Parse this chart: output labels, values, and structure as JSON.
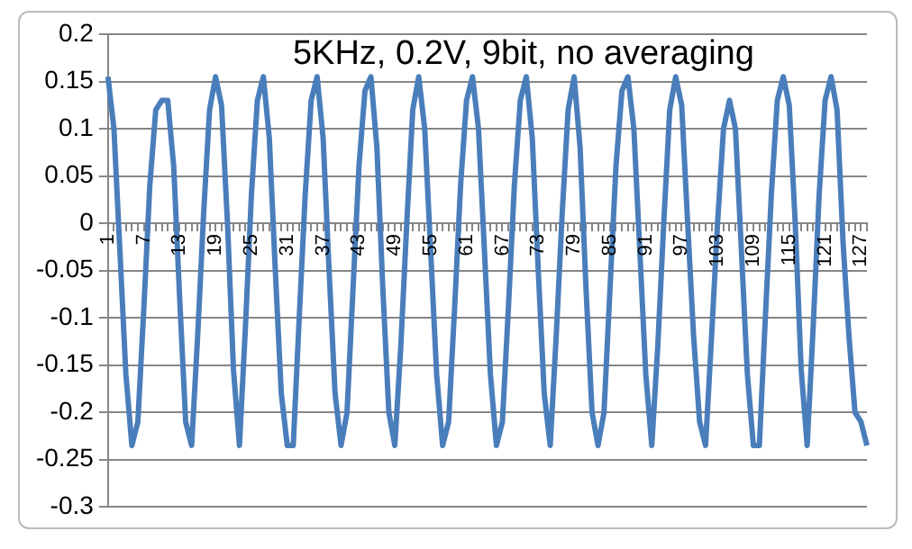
{
  "chart_data": {
    "type": "line",
    "title": "5KHz, 0.2V, 9bit, no averaging",
    "categories": [
      "1",
      null,
      null,
      null,
      null,
      null,
      "7",
      null,
      null,
      null,
      null,
      null,
      "13",
      null,
      null,
      null,
      null,
      null,
      "19",
      null,
      null,
      null,
      null,
      null,
      "25",
      null,
      null,
      null,
      null,
      null,
      "31",
      null,
      null,
      null,
      null,
      null,
      "37",
      null,
      null,
      null,
      null,
      null,
      "43",
      null,
      null,
      null,
      null,
      null,
      "49",
      null,
      null,
      null,
      null,
      null,
      "55",
      null,
      null,
      null,
      null,
      null,
      "61",
      null,
      null,
      null,
      null,
      null,
      "67",
      null,
      null,
      null,
      null,
      null,
      "73",
      null,
      null,
      null,
      null,
      null,
      "79",
      null,
      null,
      null,
      null,
      null,
      "85",
      null,
      null,
      null,
      null,
      null,
      "91",
      null,
      null,
      null,
      null,
      null,
      "97",
      null,
      null,
      null,
      null,
      null,
      "103",
      null,
      null,
      null,
      null,
      null,
      "109",
      null,
      null,
      null,
      null,
      null,
      "115",
      null,
      null,
      null,
      null,
      null,
      "121",
      null,
      null,
      null,
      null,
      null,
      "127",
      null
    ],
    "series": [
      {
        "color": "#4a7ebb",
        "values": [
          0.155,
          0.1,
          -0.03,
          -0.16,
          -0.235,
          -0.21,
          -0.09,
          0.04,
          0.12,
          0.13,
          0.13,
          0.06,
          -0.08,
          -0.21,
          -0.235,
          -0.12,
          0.01,
          0.12,
          0.155,
          0.125,
          0.0,
          -0.155,
          -0.235,
          -0.11,
          0.03,
          0.13,
          0.155,
          0.09,
          -0.05,
          -0.18,
          -0.235,
          -0.235,
          -0.1,
          0.03,
          0.13,
          0.155,
          0.09,
          -0.05,
          -0.18,
          -0.235,
          -0.2,
          -0.07,
          0.06,
          0.14,
          0.155,
          0.08,
          -0.07,
          -0.2,
          -0.235,
          -0.13,
          0.0,
          0.12,
          0.155,
          0.1,
          -0.03,
          -0.16,
          -0.235,
          -0.21,
          -0.09,
          0.04,
          0.13,
          0.155,
          0.1,
          -0.03,
          -0.16,
          -0.235,
          -0.21,
          -0.09,
          0.04,
          0.13,
          0.155,
          0.09,
          -0.05,
          -0.18,
          -0.235,
          -0.12,
          0.01,
          0.12,
          0.155,
          0.08,
          -0.07,
          -0.2,
          -0.235,
          -0.2,
          -0.07,
          0.06,
          0.14,
          0.155,
          0.1,
          -0.03,
          -0.16,
          -0.235,
          -0.13,
          0.0,
          0.12,
          0.155,
          0.125,
          0.0,
          -0.12,
          -0.21,
          -0.235,
          -0.12,
          0.0,
          0.1,
          0.13,
          0.1,
          -0.03,
          -0.16,
          -0.235,
          -0.235,
          -0.1,
          0.03,
          0.13,
          0.155,
          0.125,
          0.0,
          -0.155,
          -0.235,
          -0.11,
          0.03,
          0.13,
          0.155,
          0.12,
          -0.02,
          -0.12,
          -0.2,
          -0.21,
          -0.235
        ]
      }
    ],
    "ylim": [
      -0.3,
      0.2
    ],
    "yticks": [
      -0.3,
      -0.25,
      -0.2,
      -0.15,
      -0.1,
      -0.05,
      0,
      0.05,
      0.1,
      0.15,
      0.2
    ],
    "grid": "y",
    "legend": false,
    "marker": "none",
    "line_style": "solid"
  }
}
